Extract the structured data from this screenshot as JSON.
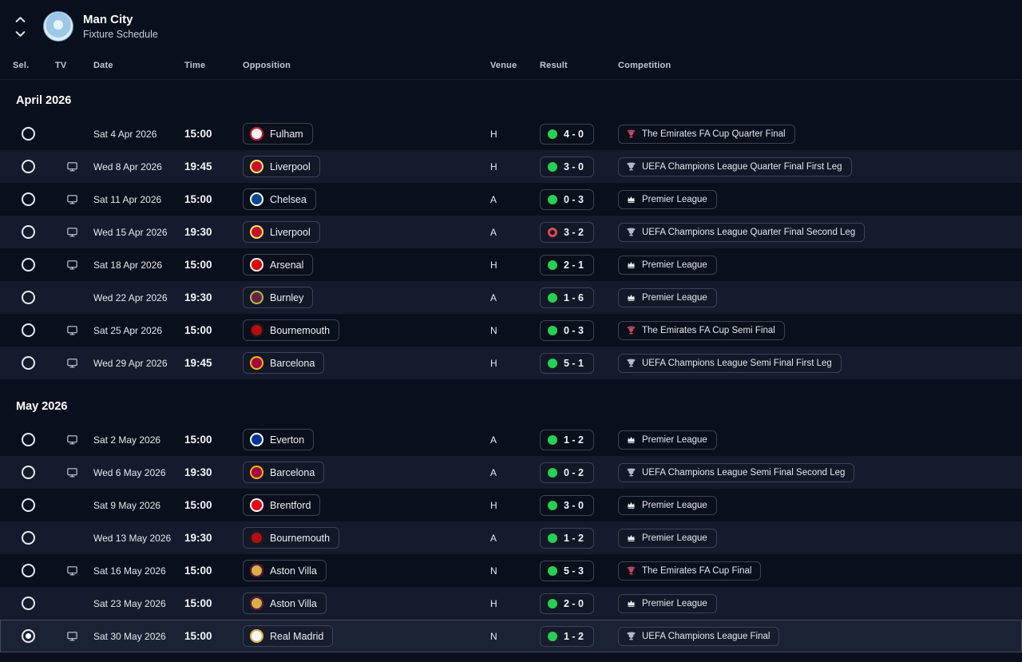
{
  "header": {
    "team": "Man City",
    "subtitle": "Fixture Schedule"
  },
  "columns": [
    "Sel.",
    "TV",
    "Date",
    "Time",
    "Opposition",
    "Venue",
    "Result",
    "Competition"
  ],
  "colors": {
    "win_dot": "#27d052",
    "loss_dot": "#e0484f",
    "club_badge_blue": "#9cc7e6",
    "row_alt_bg": "#151b2c",
    "selected_row_bg": "#1b2234"
  },
  "sections": [
    {
      "label": "April 2026",
      "rows": [
        {
          "tv": false,
          "date": "Sat 4 Apr 2026",
          "time": "15:00",
          "opposition": "Fulham",
          "badge": {
            "c1": "#f2f2f2",
            "c2": "#cc1122"
          },
          "venue": "H",
          "result": "4 - 0",
          "result_status": "win",
          "competition": "The Emirates FA Cup Quarter Final",
          "comp_type": "facup",
          "selected": false
        },
        {
          "tv": true,
          "date": "Wed 8 Apr 2026",
          "time": "19:45",
          "opposition": "Liverpool",
          "badge": {
            "c1": "#c8102e",
            "c2": "#f6eb61"
          },
          "venue": "H",
          "result": "3 - 0",
          "result_status": "win",
          "competition": "UEFA Champions League Quarter Final First Leg",
          "comp_type": "ucl",
          "selected": false
        },
        {
          "tv": true,
          "date": "Sat 11 Apr 2026",
          "time": "15:00",
          "opposition": "Chelsea",
          "badge": {
            "c1": "#034694",
            "c2": "#ffffff"
          },
          "venue": "A",
          "result": "0 - 3",
          "result_status": "win",
          "competition": "Premier League",
          "comp_type": "pl",
          "selected": false
        },
        {
          "tv": true,
          "date": "Wed 15 Apr 2026",
          "time": "19:30",
          "opposition": "Liverpool",
          "badge": {
            "c1": "#c8102e",
            "c2": "#f6eb61"
          },
          "venue": "A",
          "result": "3 - 2",
          "result_status": "loss",
          "competition": "UEFA Champions League Quarter Final Second Leg",
          "comp_type": "ucl",
          "selected": false
        },
        {
          "tv": true,
          "date": "Sat 18 Apr 2026",
          "time": "15:00",
          "opposition": "Arsenal",
          "badge": {
            "c1": "#db0007",
            "c2": "#f5f5f5"
          },
          "venue": "H",
          "result": "2 - 1",
          "result_status": "win",
          "competition": "Premier League",
          "comp_type": "pl",
          "selected": false
        },
        {
          "tv": false,
          "date": "Wed 22 Apr 2026",
          "time": "19:30",
          "opposition": "Burnley",
          "badge": {
            "c1": "#6c1d45",
            "c2": "#a3c14a"
          },
          "venue": "A",
          "result": "1 - 6",
          "result_status": "win",
          "competition": "Premier League",
          "comp_type": "pl",
          "selected": false
        },
        {
          "tv": true,
          "date": "Sat 25 Apr 2026",
          "time": "15:00",
          "opposition": "Bournemouth",
          "badge": {
            "c1": "#b50e12",
            "c2": "#1a1a1a"
          },
          "venue": "N",
          "result": "0 - 3",
          "result_status": "win",
          "competition": "The Emirates FA Cup Semi Final",
          "comp_type": "facup",
          "selected": false
        },
        {
          "tv": true,
          "date": "Wed 29 Apr 2026",
          "time": "19:45",
          "opposition": "Barcelona",
          "badge": {
            "c1": "#a50044",
            "c2": "#edbb00"
          },
          "venue": "H",
          "result": "5 - 1",
          "result_status": "win",
          "competition": "UEFA Champions League Semi Final First Leg",
          "comp_type": "ucl",
          "selected": false
        }
      ]
    },
    {
      "label": "May 2026",
      "rows": [
        {
          "tv": true,
          "date": "Sat 2 May 2026",
          "time": "15:00",
          "opposition": "Everton",
          "badge": {
            "c1": "#003399",
            "c2": "#ffffff"
          },
          "venue": "A",
          "result": "1 - 2",
          "result_status": "win",
          "competition": "Premier League",
          "comp_type": "pl",
          "selected": false
        },
        {
          "tv": true,
          "date": "Wed 6 May 2026",
          "time": "19:30",
          "opposition": "Barcelona",
          "badge": {
            "c1": "#a50044",
            "c2": "#edbb00"
          },
          "venue": "A",
          "result": "0 - 2",
          "result_status": "win",
          "competition": "UEFA Champions League Semi Final Second Leg",
          "comp_type": "ucl",
          "selected": false
        },
        {
          "tv": false,
          "date": "Sat 9 May 2026",
          "time": "15:00",
          "opposition": "Brentford",
          "badge": {
            "c1": "#e30613",
            "c2": "#ffffff"
          },
          "venue": "H",
          "result": "3 - 0",
          "result_status": "win",
          "competition": "Premier League",
          "comp_type": "pl",
          "selected": false
        },
        {
          "tv": false,
          "date": "Wed 13 May 2026",
          "time": "19:30",
          "opposition": "Bournemouth",
          "badge": {
            "c1": "#b50e12",
            "c2": "#1a1a1a"
          },
          "venue": "A",
          "result": "1 - 2",
          "result_status": "win",
          "competition": "Premier League",
          "comp_type": "pl",
          "selected": false
        },
        {
          "tv": true,
          "date": "Sat 16 May 2026",
          "time": "15:00",
          "opposition": "Aston Villa",
          "badge": {
            "c1": "#d4b24a",
            "c2": "#670e36"
          },
          "venue": "N",
          "result": "5 - 3",
          "result_status": "win",
          "competition": "The Emirates FA Cup Final",
          "comp_type": "facup",
          "selected": false
        },
        {
          "tv": false,
          "date": "Sat 23 May 2026",
          "time": "15:00",
          "opposition": "Aston Villa",
          "badge": {
            "c1": "#d4b24a",
            "c2": "#670e36"
          },
          "venue": "H",
          "result": "2 - 0",
          "result_status": "win",
          "competition": "Premier League",
          "comp_type": "pl",
          "selected": false
        },
        {
          "tv": true,
          "date": "Sat 30 May 2026",
          "time": "15:00",
          "opposition": "Real Madrid",
          "badge": {
            "c1": "#f5f5f5",
            "c2": "#d4af37"
          },
          "venue": "N",
          "result": "1 - 2",
          "result_status": "win",
          "competition": "UEFA Champions League Final",
          "comp_type": "ucl",
          "selected": true
        }
      ]
    }
  ]
}
